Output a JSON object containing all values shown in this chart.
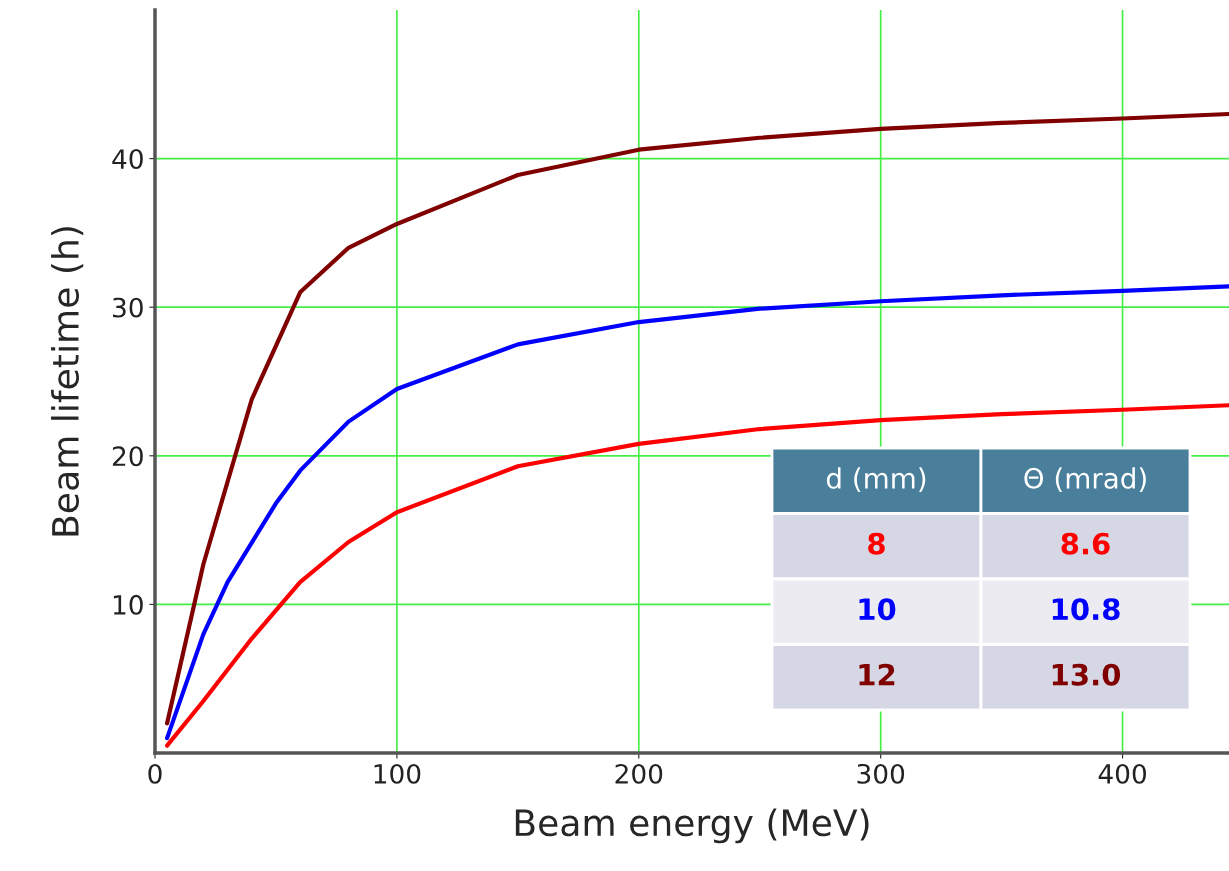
{
  "chart_data": {
    "type": "line",
    "xlabel": "Beam energy (MeV)",
    "ylabel": "Beam lifetime (h)",
    "xlim": [
      0,
      444
    ],
    "ylim": [
      0,
      50
    ],
    "xticks": [
      0,
      100,
      200,
      300,
      400
    ],
    "yticks": [
      10,
      20,
      30,
      40
    ],
    "grid": true,
    "series": [
      {
        "color": "#ff0000",
        "x": [
          5,
          20,
          40,
          60,
          80,
          100,
          150,
          200,
          250,
          300,
          350,
          400,
          444
        ],
        "values": [
          0.5,
          3.5,
          7.7,
          11.5,
          14.2,
          16.2,
          19.3,
          20.8,
          21.8,
          22.4,
          22.8,
          23.1,
          23.4
        ]
      },
      {
        "color": "#0000ff",
        "x": [
          5,
          20,
          30,
          50,
          60,
          80,
          100,
          150,
          200,
          250,
          300,
          350,
          400,
          444
        ],
        "values": [
          1.0,
          8.0,
          11.5,
          16.8,
          19.0,
          22.3,
          24.5,
          27.5,
          29.0,
          29.9,
          30.4,
          30.8,
          31.1,
          31.4
        ]
      },
      {
        "color": "#800000",
        "x": [
          5,
          20,
          40,
          60,
          80,
          100,
          150,
          200,
          250,
          300,
          350,
          400,
          444
        ],
        "values": [
          2.0,
          12.7,
          23.8,
          31.0,
          34.0,
          35.6,
          38.9,
          40.6,
          41.4,
          42.0,
          42.4,
          42.7,
          43.0
        ]
      }
    ],
    "annotations": [
      "d (mm)",
      "Θ (mrad)",
      "8",
      "8.6",
      "10",
      "10.8",
      "12",
      "13.0"
    ]
  }
}
